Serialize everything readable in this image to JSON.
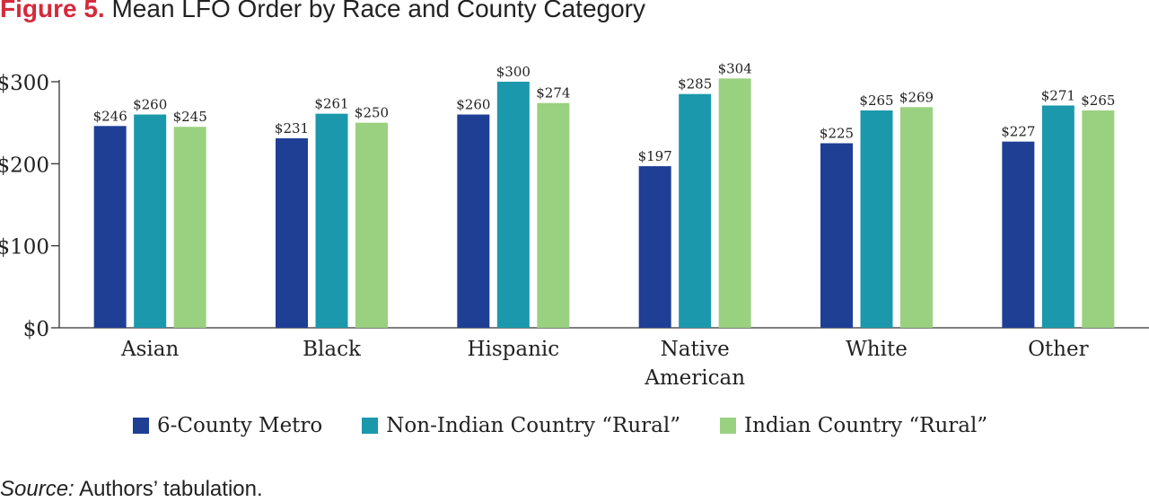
{
  "figure": {
    "label": "Figure 5.",
    "title": "Mean LFO Order by Race and County Category"
  },
  "source": {
    "prefix": "Source:",
    "text": "Authors’ tabulation."
  },
  "chart_data": {
    "type": "bar",
    "title": "Mean LFO Order by Race and County Category",
    "xlabel": "",
    "ylabel": "",
    "ylim": [
      0,
      300
    ],
    "yticks": [
      0,
      100,
      200,
      300
    ],
    "ytick_labels": [
      "$0",
      "$100",
      "$200",
      "$300"
    ],
    "grid": false,
    "legend_position": "bottom",
    "categories": [
      [
        "Asian"
      ],
      [
        "Black"
      ],
      [
        "Hispanic"
      ],
      [
        "Native",
        "American"
      ],
      [
        "White"
      ],
      [
        "Other"
      ]
    ],
    "series": [
      {
        "name": "6-County Metro",
        "color": "#1f3f95",
        "values": [
          246,
          231,
          260,
          197,
          225,
          227
        ],
        "labels": [
          "$246",
          "$231",
          "$260",
          "$197",
          "$225",
          "$227"
        ]
      },
      {
        "name": "Non-Indian Country “Rural”",
        "color": "#1b98ac",
        "values": [
          260,
          261,
          300,
          285,
          265,
          271
        ],
        "labels": [
          "$260",
          "$261",
          "$300",
          "$285",
          "$265",
          "$271"
        ]
      },
      {
        "name": "Indian Country “Rural”",
        "color": "#99d180",
        "values": [
          245,
          250,
          274,
          304,
          269,
          265
        ],
        "labels": [
          "$245",
          "$250",
          "$274",
          "$304",
          "$269",
          "$265"
        ]
      }
    ]
  }
}
